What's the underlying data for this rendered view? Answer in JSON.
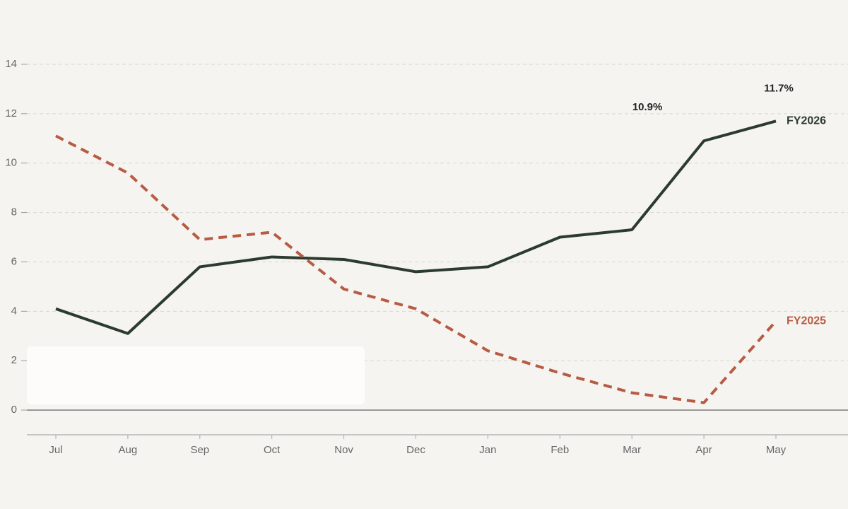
{
  "chart_data": {
    "type": "line",
    "categories": [
      "Jul",
      "Aug",
      "Sep",
      "Oct",
      "Nov",
      "Dec",
      "Jan",
      "Feb",
      "Mar",
      "Apr",
      "May"
    ],
    "series": [
      {
        "name": "FY2026",
        "color": "#2b3b2f",
        "dashed": false,
        "values": [
          4.1,
          3.1,
          5.8,
          6.2,
          6.1,
          5.6,
          5.8,
          7.0,
          7.3,
          10.9,
          11.7
        ],
        "value_labels": [
          null,
          null,
          null,
          null,
          null,
          null,
          null,
          null,
          null,
          "10.9%",
          "11.7%"
        ]
      },
      {
        "name": "FY2025",
        "color": "#b65c45",
        "dashed": true,
        "values": [
          11.1,
          9.6,
          6.9,
          7.2,
          4.9,
          4.1,
          2.4,
          1.5,
          0.7,
          0.3,
          3.6
        ]
      }
    ],
    "ylim": [
      -1,
      15
    ],
    "yticks": [
      0,
      2,
      4,
      6,
      8,
      10,
      12,
      14
    ],
    "grid": true
  }
}
